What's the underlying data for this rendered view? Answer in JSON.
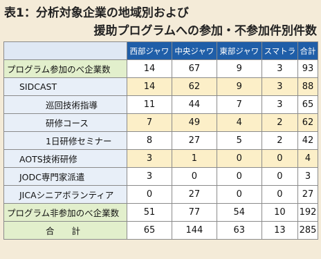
{
  "header": {
    "title_line1": "表1：分析対象企業の地域別および",
    "title_line2": "援助プログラムへの参加・不参加件別件数"
  },
  "table": {
    "columns": [
      "西部ジャワ",
      "中央ジャワ",
      "東部ジャワ",
      "スマトラ",
      "合計"
    ],
    "rows": [
      [
        "プログラム参加のべ企業数",
        "14",
        "67",
        "9",
        "3",
        "93"
      ],
      [
        "SIDCAST",
        "14",
        "62",
        "9",
        "3",
        "88"
      ],
      [
        "巡回技術指導",
        "11",
        "44",
        "7",
        "3",
        "65"
      ],
      [
        "研修コース",
        "7",
        "49",
        "4",
        "2",
        "62"
      ],
      [
        "1日研修セミナー",
        "8",
        "27",
        "5",
        "2",
        "42"
      ],
      [
        "AOTS技術研修",
        "3",
        "1",
        "0",
        "0",
        "4"
      ],
      [
        "JODC専門家派遣",
        "3",
        "0",
        "0",
        "0",
        "3"
      ],
      [
        "JICAシニアボランティア",
        "0",
        "27",
        "0",
        "0",
        "27"
      ],
      [
        "プログラム非参加のべ企業数",
        "51",
        "77",
        "54",
        "10",
        "192"
      ],
      [
        "合　　計",
        "65",
        "144",
        "63",
        "13",
        "285"
      ]
    ]
  }
}
